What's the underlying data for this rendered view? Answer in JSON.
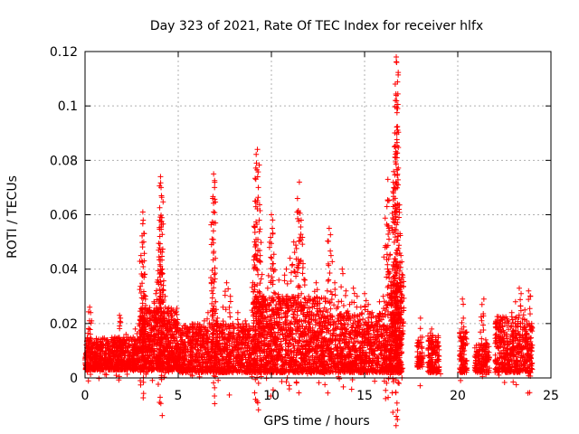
{
  "chart_data": {
    "type": "scatter",
    "title": "Day 323 of 2021, Rate Of TEC Index for receiver hlfx",
    "xlabel": "GPS time / hours",
    "ylabel": "ROTI / TECUs",
    "xlim": [
      0,
      25
    ],
    "ylim": [
      0,
      0.12
    ],
    "xticks": [
      0,
      5,
      10,
      15,
      20,
      25
    ],
    "yticks": [
      0,
      0.02,
      0.04,
      0.06,
      0.08,
      0.1,
      0.12
    ],
    "xtick_labels": [
      "0",
      "5",
      "10",
      "15",
      "20",
      "25"
    ],
    "ytick_labels": [
      "0",
      "0.02",
      "0.04",
      "0.06",
      "0.08",
      "0.1",
      "0.12"
    ],
    "grid": true,
    "marker": "+",
    "color": "#ff0000",
    "series": [
      {
        "name": "ROTI",
        "points": [
          [
            0.05,
            0.009
          ],
          [
            0.1,
            0.012
          ],
          [
            0.15,
            0.006
          ],
          [
            0.2,
            0.018
          ],
          [
            0.25,
            0.026
          ],
          [
            0.3,
            0.024
          ],
          [
            0.35,
            0.021
          ],
          [
            0.4,
            0.011
          ],
          [
            0.5,
            0.008
          ],
          [
            0.6,
            0.013
          ],
          [
            0.7,
            0.005
          ],
          [
            0.8,
            0.01
          ],
          [
            0.9,
            0.007
          ],
          [
            1.0,
            0.012
          ],
          [
            1.1,
            0.009
          ],
          [
            1.2,
            0.014
          ],
          [
            1.3,
            0.006
          ],
          [
            1.4,
            0.011
          ],
          [
            1.5,
            0.008
          ],
          [
            1.6,
            0.015
          ],
          [
            1.7,
            0.01
          ],
          [
            1.85,
            0.023
          ],
          [
            1.9,
            0.022
          ],
          [
            2.0,
            0.012
          ],
          [
            2.1,
            0.009
          ],
          [
            2.2,
            0.016
          ],
          [
            2.3,
            0.011
          ],
          [
            2.4,
            0.007
          ],
          [
            2.5,
            0.014
          ],
          [
            2.6,
            0.01
          ],
          [
            2.7,
            0.018
          ],
          [
            2.8,
            0.013
          ],
          [
            2.9,
            0.02
          ],
          [
            3.0,
            0.045
          ],
          [
            3.05,
            0.043
          ],
          [
            3.1,
            0.061
          ],
          [
            3.12,
            0.058
          ],
          [
            3.15,
            0.05
          ],
          [
            3.2,
            0.038
          ],
          [
            3.25,
            0.03
          ],
          [
            3.3,
            0.024
          ],
          [
            3.4,
            0.016
          ],
          [
            3.5,
            0.022
          ],
          [
            3.6,
            0.018
          ],
          [
            3.7,
            0.028
          ],
          [
            3.8,
            0.031
          ],
          [
            3.9,
            0.036
          ],
          [
            3.95,
            0.047
          ],
          [
            4.0,
            0.058
          ],
          [
            4.05,
            0.074
          ],
          [
            4.08,
            0.07
          ],
          [
            4.1,
            0.067
          ],
          [
            4.15,
            0.04
          ],
          [
            4.2,
            0.034
          ],
          [
            4.3,
            0.03
          ],
          [
            4.4,
            0.021
          ],
          [
            4.5,
            0.017
          ],
          [
            4.6,
            0.013
          ],
          [
            4.7,
            0.019
          ],
          [
            4.8,
            0.011
          ],
          [
            4.9,
            0.015
          ],
          [
            5.0,
            0.009
          ],
          [
            5.2,
            0.014
          ],
          [
            5.4,
            0.011
          ],
          [
            5.6,
            0.018
          ],
          [
            5.8,
            0.012
          ],
          [
            6.0,
            0.016
          ],
          [
            6.2,
            0.01
          ],
          [
            6.4,
            0.021
          ],
          [
            6.6,
            0.024
          ],
          [
            6.8,
            0.032
          ],
          [
            6.85,
            0.066
          ],
          [
            6.9,
            0.075
          ],
          [
            6.95,
            0.07
          ],
          [
            7.0,
            0.028
          ],
          [
            7.1,
            0.022
          ],
          [
            7.2,
            0.018
          ],
          [
            7.4,
            0.026
          ],
          [
            7.6,
            0.035
          ],
          [
            7.8,
            0.03
          ],
          [
            8.0,
            0.019
          ],
          [
            8.2,
            0.024
          ],
          [
            8.4,
            0.017
          ],
          [
            8.6,
            0.021
          ],
          [
            8.8,
            0.015
          ],
          [
            9.0,
            0.035
          ],
          [
            9.1,
            0.05
          ],
          [
            9.15,
            0.065
          ],
          [
            9.2,
            0.079
          ],
          [
            9.25,
            0.084
          ],
          [
            9.3,
            0.07
          ],
          [
            9.35,
            0.058
          ],
          [
            9.4,
            0.045
          ],
          [
            9.5,
            0.038
          ],
          [
            9.6,
            0.03
          ],
          [
            9.7,
            0.025
          ],
          [
            9.8,
            0.033
          ],
          [
            9.9,
            0.048
          ],
          [
            10.0,
            0.06
          ],
          [
            10.05,
            0.055
          ],
          [
            10.1,
            0.042
          ],
          [
            10.2,
            0.031
          ],
          [
            10.4,
            0.036
          ],
          [
            10.6,
            0.028
          ],
          [
            10.8,
            0.04
          ],
          [
            11.0,
            0.044
          ],
          [
            11.2,
            0.05
          ],
          [
            11.4,
            0.066
          ],
          [
            11.5,
            0.072
          ],
          [
            11.6,
            0.058
          ],
          [
            11.7,
            0.042
          ],
          [
            11.8,
            0.036
          ],
          [
            12.0,
            0.03
          ],
          [
            12.2,
            0.026
          ],
          [
            12.4,
            0.035
          ],
          [
            12.6,
            0.029
          ],
          [
            12.8,
            0.022
          ],
          [
            13.0,
            0.032
          ],
          [
            13.1,
            0.055
          ],
          [
            13.2,
            0.045
          ],
          [
            13.4,
            0.035
          ],
          [
            13.6,
            0.028
          ],
          [
            13.8,
            0.04
          ],
          [
            14.0,
            0.032
          ],
          [
            14.2,
            0.027
          ],
          [
            14.4,
            0.033
          ],
          [
            14.6,
            0.03
          ],
          [
            14.8,
            0.026
          ],
          [
            15.0,
            0.031
          ],
          [
            15.2,
            0.027
          ],
          [
            15.4,
            0.024
          ],
          [
            15.6,
            0.02
          ],
          [
            15.8,
            0.028
          ],
          [
            16.0,
            0.03
          ],
          [
            16.1,
            0.048
          ],
          [
            16.2,
            0.063
          ],
          [
            16.25,
            0.073
          ],
          [
            16.3,
            0.055
          ],
          [
            16.5,
            0.04
          ],
          [
            16.55,
            0.068
          ],
          [
            16.6,
            0.085
          ],
          [
            16.65,
            0.102
          ],
          [
            16.7,
            0.118
          ],
          [
            16.72,
            0.116
          ],
          [
            16.75,
            0.099
          ],
          [
            16.8,
            0.071
          ],
          [
            16.85,
            0.062
          ],
          [
            16.9,
            0.053
          ],
          [
            16.95,
            0.045
          ],
          [
            17.0,
            0.038
          ],
          [
            17.05,
            0.037
          ],
          [
            18.0,
            0.022
          ],
          [
            18.1,
            0.015
          ],
          [
            18.2,
            0.008
          ],
          [
            18.6,
            0.018
          ],
          [
            18.7,
            0.012
          ],
          [
            18.8,
            0.006
          ],
          [
            18.9,
            0.009
          ],
          [
            19.0,
            0.004
          ],
          [
            20.2,
            0.018
          ],
          [
            20.25,
            0.029
          ],
          [
            20.3,
            0.022
          ],
          [
            20.35,
            0.01
          ],
          [
            20.4,
            0.005
          ],
          [
            21.0,
            0.012
          ],
          [
            21.1,
            0.008
          ],
          [
            21.3,
            0.027
          ],
          [
            21.4,
            0.029
          ],
          [
            21.5,
            0.014
          ],
          [
            21.6,
            0.006
          ],
          [
            22.2,
            0.02
          ],
          [
            22.3,
            0.012
          ],
          [
            22.5,
            0.016
          ],
          [
            22.7,
            0.021
          ],
          [
            22.9,
            0.024
          ],
          [
            23.1,
            0.028
          ],
          [
            23.3,
            0.033
          ],
          [
            23.4,
            0.031
          ],
          [
            23.6,
            0.025
          ],
          [
            23.8,
            0.032
          ],
          [
            23.9,
            0.03
          ],
          [
            24.0,
            0.012
          ]
        ]
      }
    ],
    "dense_bands": [
      {
        "x0": 0.0,
        "x1": 2.9,
        "y0": 0.003,
        "y1": 0.015,
        "count": 650
      },
      {
        "x0": 2.9,
        "x1": 5.0,
        "y0": 0.003,
        "y1": 0.026,
        "count": 600
      },
      {
        "x0": 5.0,
        "x1": 9.0,
        "y0": 0.002,
        "y1": 0.02,
        "count": 850
      },
      {
        "x0": 9.0,
        "x1": 13.0,
        "y0": 0.002,
        "y1": 0.03,
        "count": 1050
      },
      {
        "x0": 13.0,
        "x1": 16.4,
        "y0": 0.002,
        "y1": 0.024,
        "count": 750
      },
      {
        "x0": 16.4,
        "x1": 17.0,
        "y0": 0.002,
        "y1": 0.035,
        "count": 260
      },
      {
        "x0": 17.8,
        "x1": 18.1,
        "y0": 0.004,
        "y1": 0.014,
        "count": 60
      },
      {
        "x0": 18.4,
        "x1": 19.0,
        "y0": 0.002,
        "y1": 0.016,
        "count": 130
      },
      {
        "x0": 20.1,
        "x1": 20.5,
        "y0": 0.002,
        "y1": 0.017,
        "count": 80
      },
      {
        "x0": 20.9,
        "x1": 21.7,
        "y0": 0.002,
        "y1": 0.013,
        "count": 120
      },
      {
        "x0": 22.0,
        "x1": 24.0,
        "y0": 0.002,
        "y1": 0.023,
        "count": 420
      }
    ]
  }
}
